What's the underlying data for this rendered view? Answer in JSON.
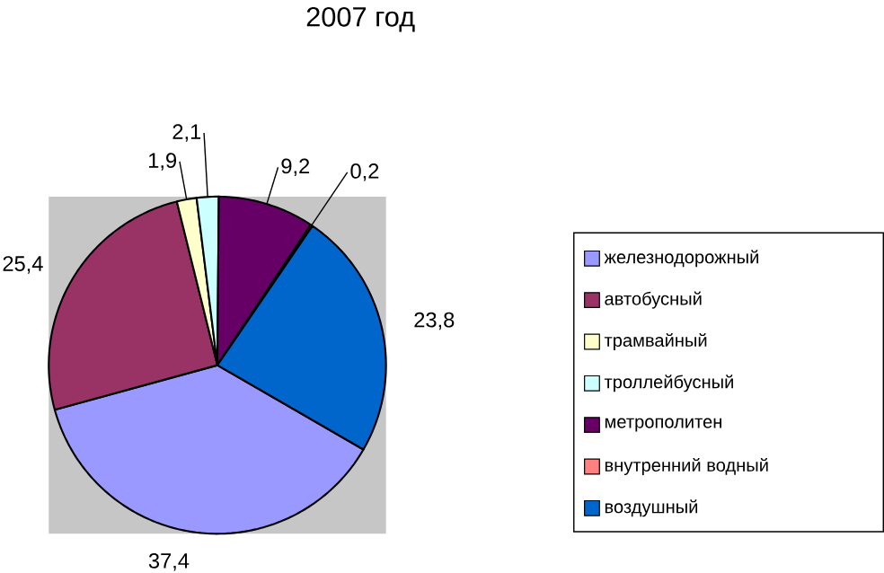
{
  "chart_data": {
    "type": "pie",
    "title": "2007 год",
    "categories": [
      "железнодорожный",
      "автобусный",
      "трамвайный",
      "троллейбусный",
      "метрополитен",
      "внутренний водный",
      "воздушный"
    ],
    "values": [
      37.4,
      25.4,
      1.9,
      2.1,
      9.2,
      0.2,
      23.8
    ],
    "value_labels": [
      "37,4",
      "25,4",
      "1,9",
      "2,1",
      "9,2",
      "0,2",
      "23,8"
    ],
    "colors": [
      "#9999ff",
      "#993366",
      "#ffffcc",
      "#ccffff",
      "#660066",
      "#ff8080",
      "#0066cc"
    ],
    "legend": "right"
  }
}
